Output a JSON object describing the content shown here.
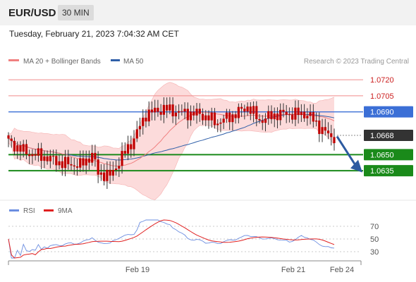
{
  "header": {
    "pair": "EUR/USD",
    "interval": "30 MIN",
    "timestamp": "Tuesday, February 21, 2023 7:04:32 AM CET"
  },
  "legend": {
    "ma20_label": "MA 20 + Bollinger Bands",
    "ma50_label": "MA 50",
    "credit": "Research © 2023 Trading Central",
    "rsi_label": "RSI",
    "rsi_ma_label": "9MA"
  },
  "colors": {
    "ma20": "#f08080",
    "ma50": "#2f5fa8",
    "band_fill": "#fbd2d2",
    "resistance": "#f08a8a",
    "pivot": "#3b6fd6",
    "support": "#1a8a1a",
    "last_price": "#333333",
    "rsi": "#6b8de0",
    "rsi_ma": "#e02020",
    "candle": "#c00000",
    "arrow": "#2c5aa0"
  },
  "chart_data": [
    {
      "type": "candlestick",
      "title": "EUR/USD",
      "interval": "30 MIN",
      "x_ticks": [
        "Feb 19",
        "Feb 21",
        "Feb 24"
      ],
      "ylim": [
        1.061,
        1.073
      ],
      "grid": false,
      "legend_position": "top-left",
      "levels": [
        {
          "name": "resistance-2",
          "value": 1.072,
          "label": "1.0720",
          "style": "resistance"
        },
        {
          "name": "resistance-1",
          "value": 1.0705,
          "label": "1.0705",
          "style": "resistance"
        },
        {
          "name": "pivot",
          "value": 1.069,
          "label": "1.0690",
          "style": "pivot"
        },
        {
          "name": "last-price",
          "value": 1.0668,
          "label": "1.0668",
          "style": "last"
        },
        {
          "name": "support-1",
          "value": 1.065,
          "label": "1.0650",
          "style": "support"
        },
        {
          "name": "support-2",
          "value": 1.0635,
          "label": "1.0635",
          "style": "support"
        }
      ],
      "forecast_arrow": {
        "from": 1.0667,
        "to": 1.0636,
        "direction": "down"
      },
      "series": [
        {
          "name": "MA 20",
          "style": "ma20"
        },
        {
          "name": "MA 50",
          "style": "ma50"
        }
      ]
    },
    {
      "type": "line",
      "title": "RSI",
      "ylim": [
        20,
        80
      ],
      "y_ticks": [
        70,
        50,
        30
      ],
      "series": [
        {
          "name": "RSI",
          "style": "rsi"
        },
        {
          "name": "9MA",
          "style": "rsi_ma"
        }
      ]
    }
  ]
}
